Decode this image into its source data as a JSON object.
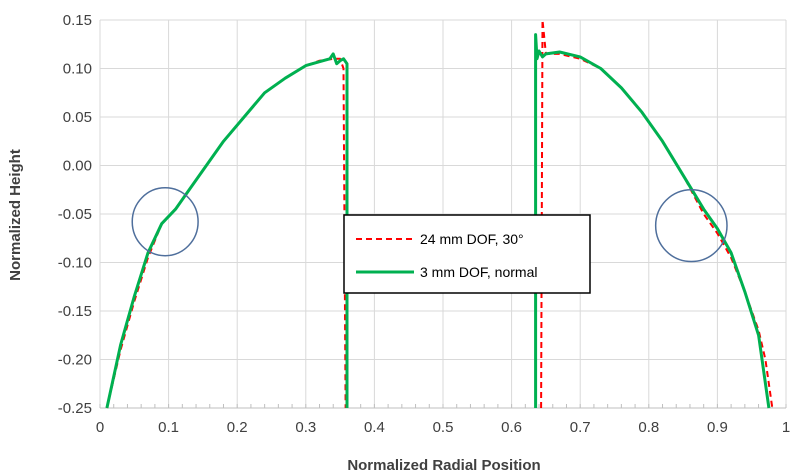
{
  "chart_data": {
    "type": "line",
    "title": "",
    "xlabel": "Normalized Radial Position",
    "ylabel": "Normalized Height",
    "xlim": [
      0,
      1
    ],
    "ylim": [
      -0.25,
      0.15
    ],
    "x_ticks": [
      0,
      0.1,
      0.2,
      0.3,
      0.4,
      0.5,
      0.6,
      0.7,
      0.8,
      0.9,
      1
    ],
    "x_tick_labels": [
      "0",
      "0.1",
      "0.2",
      "0.3",
      "0.4",
      "0.5",
      "0.6",
      "0.7",
      "0.8",
      "0.9",
      "1"
    ],
    "y_ticks": [
      -0.25,
      -0.2,
      -0.15,
      -0.1,
      -0.05,
      0,
      0.05,
      0.1,
      0.15
    ],
    "y_tick_labels": [
      "-0.25",
      "-0.20",
      "-0.15",
      "-0.10",
      "-0.05",
      "0.00",
      "0.05",
      "0.10",
      "0.15"
    ],
    "grid": true,
    "legend_position": "center",
    "series": [
      {
        "name": "24 mm DOF, 30°",
        "color": "#ff0000",
        "style": "dashed",
        "segments": [
          {
            "x": [
              0.01,
              0.03,
              0.05,
              0.07,
              0.09,
              0.11,
              0.13,
              0.15,
              0.18,
              0.21,
              0.24,
              0.27,
              0.3,
              0.32,
              0.34,
              0.35,
              0.355,
              0.358
            ],
            "y": [
              -0.25,
              -0.19,
              -0.14,
              -0.095,
              -0.06,
              -0.045,
              -0.025,
              -0.005,
              0.025,
              0.05,
              0.075,
              0.09,
              0.103,
              0.108,
              0.11,
              0.11,
              0.1,
              -0.25
            ]
          },
          {
            "x": [
              0.643,
              0.645,
              0.65,
              0.67,
              0.7,
              0.73,
              0.76,
              0.79,
              0.82,
              0.85,
              0.88,
              0.9,
              0.92,
              0.94,
              0.96,
              0.97,
              0.98
            ],
            "y": [
              -0.25,
              0.15,
              0.115,
              0.115,
              0.11,
              0.1,
              0.08,
              0.055,
              0.025,
              -0.01,
              -0.05,
              -0.07,
              -0.095,
              -0.13,
              -0.17,
              -0.2,
              -0.25
            ]
          }
        ]
      },
      {
        "name": "3 mm DOF, normal",
        "color": "#00b050",
        "style": "solid",
        "segments": [
          {
            "x": [
              0.01,
              0.03,
              0.05,
              0.07,
              0.09,
              0.11,
              0.13,
              0.15,
              0.18,
              0.21,
              0.24,
              0.27,
              0.3,
              0.32,
              0.335,
              0.34,
              0.345,
              0.35,
              0.355,
              0.36,
              0.36
            ],
            "y": [
              -0.25,
              -0.185,
              -0.135,
              -0.09,
              -0.06,
              -0.045,
              -0.025,
              -0.005,
              0.025,
              0.05,
              0.075,
              0.09,
              0.103,
              0.107,
              0.11,
              0.115,
              0.105,
              0.108,
              0.11,
              0.105,
              -0.25
            ]
          },
          {
            "x": [
              0.635,
              0.635,
              0.637,
              0.64,
              0.645,
              0.65,
              0.67,
              0.7,
              0.73,
              0.76,
              0.79,
              0.82,
              0.85,
              0.88,
              0.9,
              0.92,
              0.94,
              0.96,
              0.975
            ],
            "y": [
              -0.25,
              0.135,
              0.11,
              0.118,
              0.112,
              0.115,
              0.117,
              0.112,
              0.1,
              0.08,
              0.055,
              0.025,
              -0.01,
              -0.045,
              -0.065,
              -0.09,
              -0.13,
              -0.175,
              -0.25
            ]
          }
        ]
      }
    ],
    "annotations": [
      {
        "shape": "ellipse",
        "cx": 0.095,
        "cy": -0.058,
        "rx": 0.048,
        "ry": 0.035,
        "color": "#4f6f9c"
      },
      {
        "shape": "ellipse",
        "cx": 0.862,
        "cy": -0.062,
        "rx": 0.052,
        "ry": 0.037,
        "color": "#4f6f9c"
      }
    ]
  }
}
